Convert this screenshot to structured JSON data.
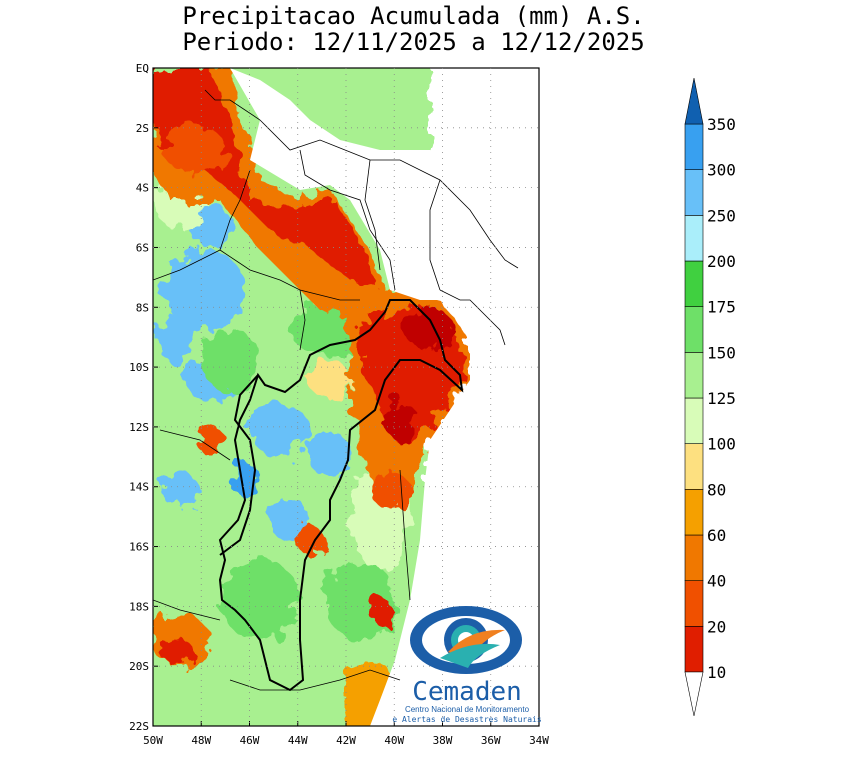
{
  "title": {
    "line1": "Precipitacao Acumulada (mm) A.S.",
    "line2": "Periodo: 12/11/2025 a 12/12/2025"
  },
  "map": {
    "lat_labels": [
      "EQ",
      "2S",
      "4S",
      "6S",
      "8S",
      "10S",
      "12S",
      "14S",
      "16S",
      "18S",
      "20S",
      "22S"
    ],
    "lon_labels": [
      "50W",
      "48W",
      "46W",
      "44W",
      "42W",
      "40W",
      "38W",
      "36W",
      "34W"
    ],
    "extent": {
      "lon_min": -50,
      "lon_max": -34,
      "lat_min": -22,
      "lat_max": 0
    }
  },
  "colorbar": {
    "levels": [
      "10",
      "20",
      "40",
      "60",
      "80",
      "100",
      "125",
      "150",
      "175",
      "200",
      "250",
      "300",
      "350"
    ],
    "colors": [
      "#c00000",
      "#e01e00",
      "#f05000",
      "#f07800",
      "#f5a000",
      "#fde080",
      "#d8fcb8",
      "#a8f090",
      "#6ee068",
      "#40d040",
      "#aaeefa",
      "#68c0f8",
      "#38a0f0",
      "#1c80d0",
      "#1060b0"
    ]
  },
  "legend_colors": {
    "dry_red": "#c00000",
    "orange": "#f07800",
    "green": "#6ee068",
    "blue": "#38a0f0",
    "no_data": "#ffffff"
  },
  "logo": {
    "name": "Cemaden",
    "subtitle1": "Centro Nacional de Monitoramento",
    "subtitle2": "e Alertas de Desastres Naturais",
    "colors": {
      "blue": "#1c5ea8",
      "teal": "#2ab0b0",
      "orange": "#f08020"
    }
  }
}
